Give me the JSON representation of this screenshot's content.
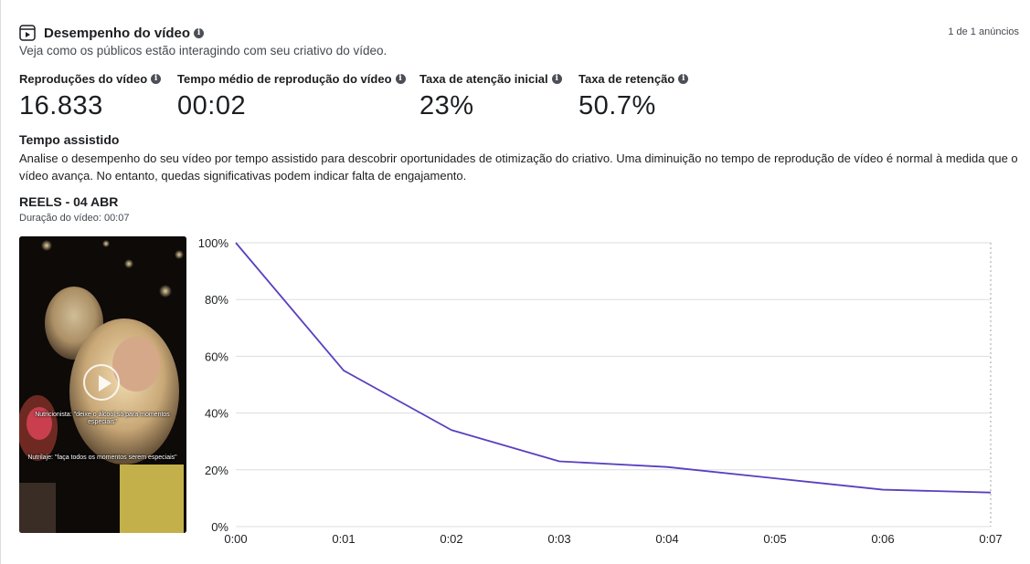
{
  "header": {
    "title": "Desempenho do vídeo",
    "subtitle": "Veja como os públicos estão interagindo com seu criativo do vídeo.",
    "ad_count": "1 de 1 anúncios"
  },
  "metrics": [
    {
      "label": "Reproduções do vídeo",
      "value": "16.833"
    },
    {
      "label": "Tempo médio de reprodução do vídeo",
      "value": "00:02"
    },
    {
      "label": "Taxa de atenção inicial",
      "value": "23%"
    },
    {
      "label": "Taxa de retenção",
      "value": "50.7%"
    }
  ],
  "section": {
    "title": "Tempo assistido",
    "description": "Analise o desempenho do seu vídeo por tempo assistido para descobrir oportunidades de otimização do criativo. Uma diminuição no tempo de reprodução de vídeo é normal à medida que o vídeo avança. No entanto, quedas significativas podem indicar falta de engajamento."
  },
  "video": {
    "title": "REELS - 04 ABR",
    "duration": "Duração do vídeo: 00:07",
    "caption_1": "Nutricionista: \"deixe o álcool só para momentos especiais\"",
    "caption_2": "Nutrilaje: \"faça todos os momentos serem especiais\""
  },
  "chart_data": {
    "type": "line",
    "categories": [
      "0:00",
      "0:01",
      "0:02",
      "0:03",
      "0:04",
      "0:05",
      "0:06",
      "0:07"
    ],
    "series": [
      {
        "values": [
          100,
          55,
          34,
          23,
          21,
          17,
          13,
          12
        ]
      }
    ],
    "y_ticks": [
      "0%",
      "20%",
      "40%",
      "60%",
      "80%",
      "100%"
    ],
    "ylim": [
      0,
      100
    ],
    "grid": true,
    "line_color": "#5a3fc0"
  }
}
